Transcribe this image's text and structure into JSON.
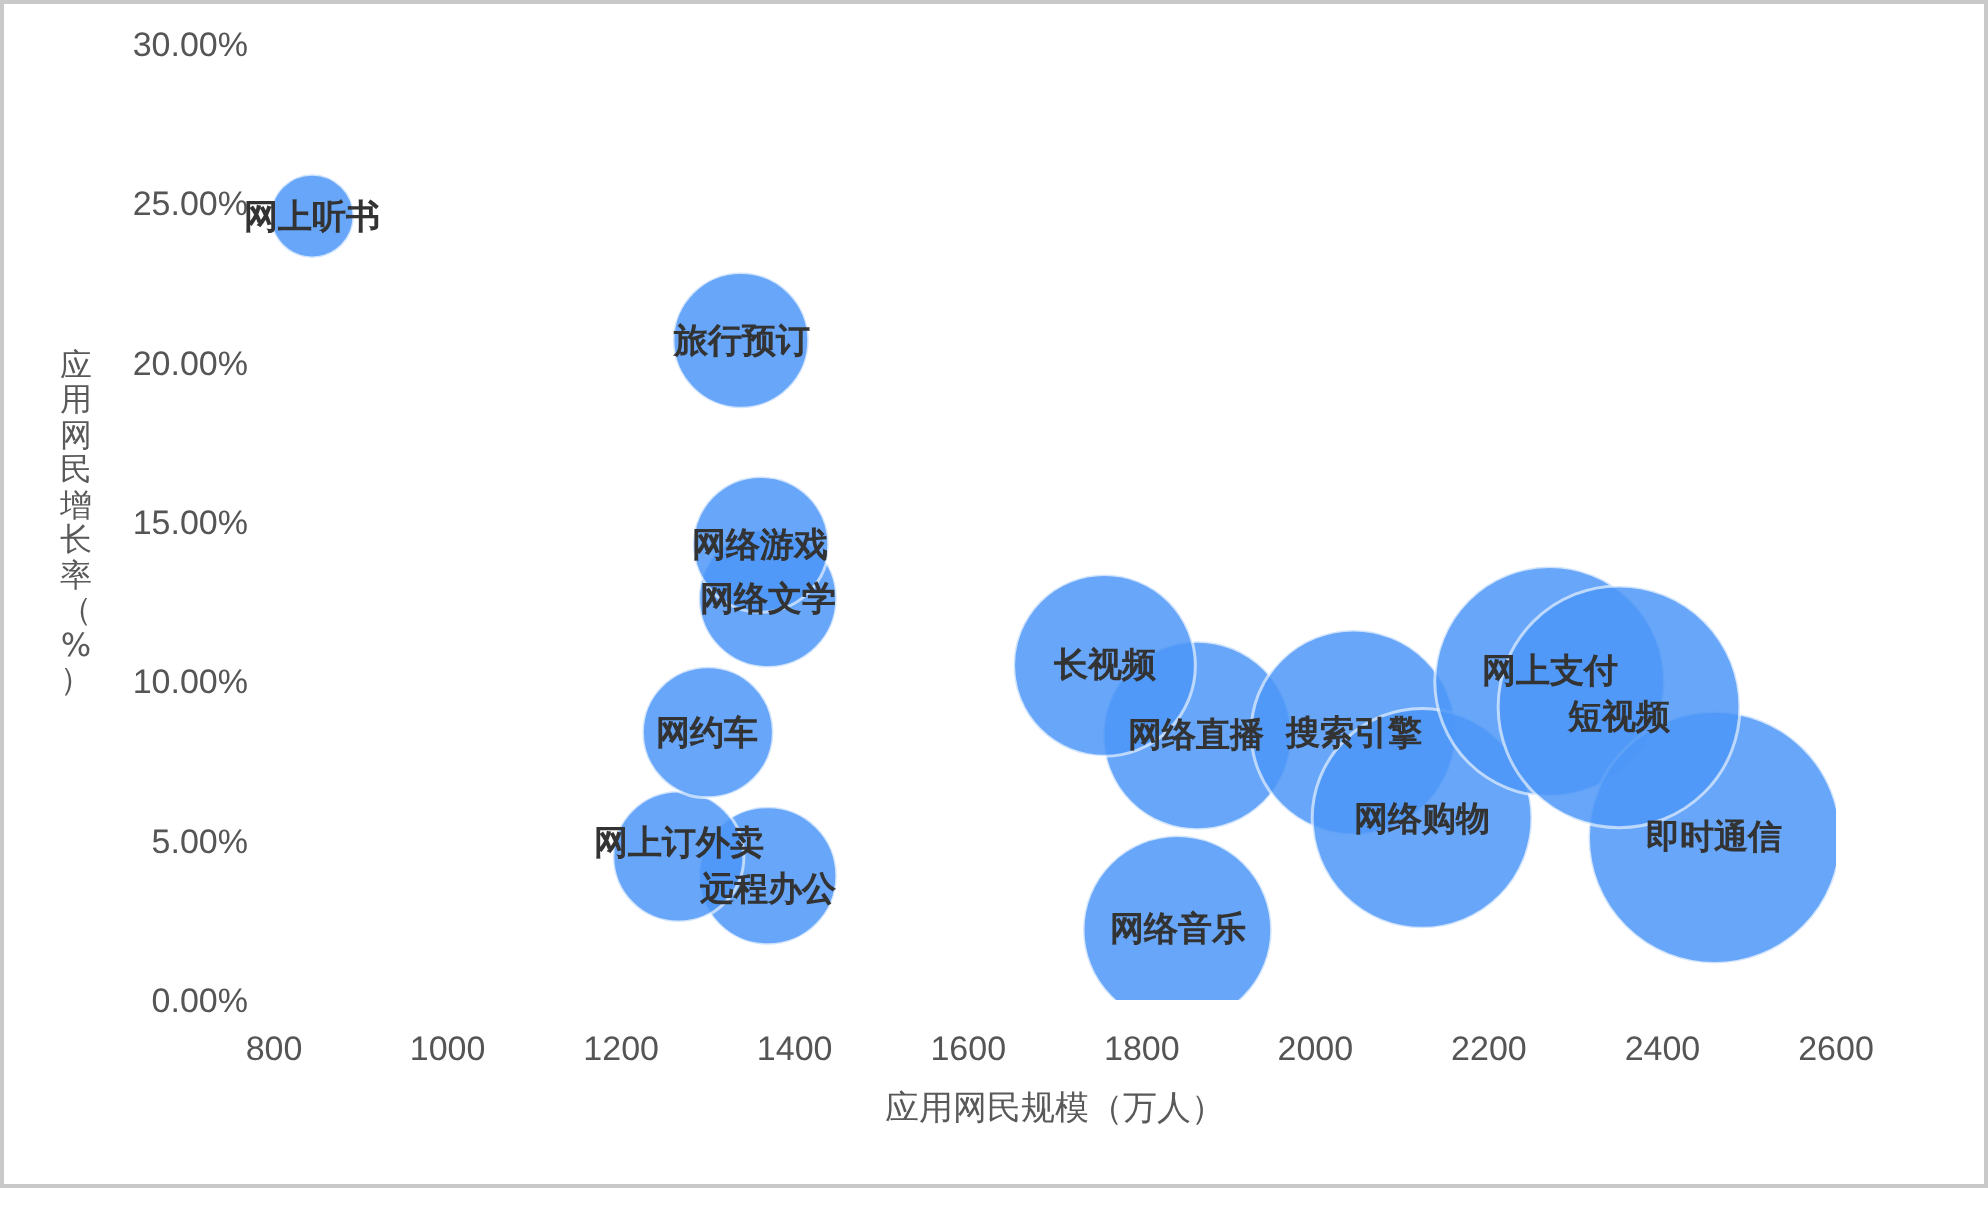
{
  "chart_data": {
    "type": "bubble",
    "xlabel": "应用网民规模（万人）",
    "ylabel": "应用网民增长率（%）",
    "xlim": [
      800,
      2600
    ],
    "xticks": [
      800,
      1000,
      1200,
      1400,
      1600,
      1800,
      2000,
      2200,
      2400,
      2600
    ],
    "ylim": [
      0,
      30
    ],
    "yticks": [
      {
        "value": 0,
        "label": "0.00%"
      },
      {
        "value": 5,
        "label": "5.00%"
      },
      {
        "value": 10,
        "label": "10.00%"
      },
      {
        "value": 15,
        "label": "15.00%"
      },
      {
        "value": 20,
        "label": "20.00%"
      },
      {
        "value": 25,
        "label": "25.00%"
      },
      {
        "value": 30,
        "label": "30.00%"
      }
    ],
    "series": [
      {
        "name": "网络文学",
        "color": "#4d97f8",
        "x": [
          1369
        ],
        "values": [
          12.6
        ],
        "sizes": [
          0.3
        ]
      },
      {
        "name": "网络游戏",
        "color": "#4d97f8",
        "x": [
          1361
        ],
        "values": [
          14.3
        ],
        "sizes": [
          0.29
        ]
      },
      {
        "name": "远程办公",
        "color": "#4d97f8",
        "x": [
          1369
        ],
        "values": [
          3.9
        ],
        "sizes": [
          0.3
        ]
      },
      {
        "name": "网上订外卖",
        "color": "#4d97f8",
        "x": [
          1266
        ],
        "values": [
          4.5
        ],
        "sizes": [
          0.27
        ]
      },
      {
        "name": "网约车",
        "color": "#4d97f8",
        "x": [
          1300
        ],
        "values": [
          8.4
        ],
        "sizes": [
          0.27
        ]
      },
      {
        "name": "旅行预订",
        "color": "#4d97f8",
        "x": [
          1338
        ],
        "values": [
          20.7
        ],
        "sizes": [
          0.29
        ]
      },
      {
        "name": "网上听书",
        "color": "#4d97f8",
        "x": [
          844
        ],
        "values": [
          24.6
        ],
        "sizes": [
          0.11
        ]
      },
      {
        "name": "网络直播",
        "color": "#4d97f8",
        "x": [
          1864
        ],
        "values": [
          8.3
        ],
        "sizes": [
          0.56
        ]
      },
      {
        "name": "长视频",
        "color": "#4d97f8",
        "x": [
          1757
        ],
        "values": [
          10.5
        ],
        "sizes": [
          0.52
        ]
      },
      {
        "name": "网络音乐",
        "color": "#4d97f8",
        "x": [
          1841
        ],
        "values": [
          2.2
        ],
        "sizes": [
          0.56
        ]
      },
      {
        "name": "搜索引擎",
        "color": "#4d97f8",
        "x": [
          2044
        ],
        "values": [
          8.4
        ],
        "sizes": [
          0.66
        ]
      },
      {
        "name": "网络购物",
        "color": "#4d97f8",
        "x": [
          2123
        ],
        "values": [
          5.7
        ],
        "sizes": [
          0.76
        ]
      },
      {
        "name": "网上支付",
        "color": "#4d97f8",
        "x": [
          2270
        ],
        "values": [
          10.0
        ],
        "sizes": [
          0.83
        ]
      },
      {
        "name": "即时通信",
        "color": "#4d97f8",
        "x": [
          2460
        ],
        "values": [
          5.1
        ],
        "sizes": [
          1
        ]
      },
      {
        "name": "短视频",
        "color": "#4d97f8",
        "x": [
          2350
        ],
        "values": [
          9.2
        ],
        "sizes": [
          0.92
        ]
      }
    ]
  }
}
